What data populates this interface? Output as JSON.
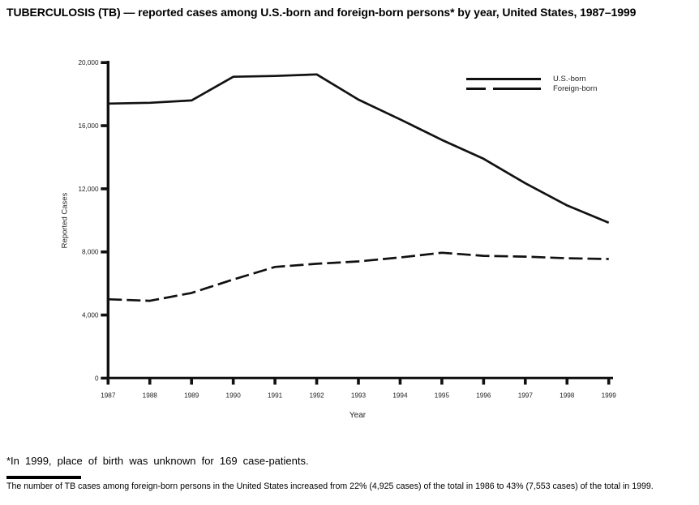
{
  "page": {
    "title": "TUBERCULOSIS (TB) — reported cases among U.S.-born and foreign-born persons* by year, United States, 1987–1999",
    "footnote": "*In 1999, place of birth was unknown for 169 case-patients.",
    "caption": "The number of TB cases among foreign-born persons in the United States increased from 22% (4,925 cases) of the total in 1986 to 43% (7,553 cases) of the total in 1999."
  },
  "chart_data": {
    "type": "line",
    "title": "",
    "xlabel": "Year",
    "ylabel": "Reported Cases",
    "x": [
      1987,
      1988,
      1989,
      1990,
      1991,
      1992,
      1993,
      1994,
      1995,
      1996,
      1997,
      1998,
      1999
    ],
    "xtick_labels": [
      "1987",
      "1988",
      "1989",
      "1990",
      "1991",
      "1992",
      "1993",
      "1994",
      "1995",
      "1996",
      "1997",
      "1998",
      "1999"
    ],
    "series": [
      {
        "name": "U.S.-born",
        "line_style": "solid",
        "color": "#111111",
        "values": [
          17400,
          17450,
          17600,
          19100,
          19150,
          19250,
          17650,
          16400,
          15100,
          13900,
          12350,
          10950,
          9850
        ]
      },
      {
        "name": "Foreign-born",
        "line_style": "dashed",
        "color": "#111111",
        "values": [
          5000,
          4900,
          5400,
          6250,
          7050,
          7250,
          7400,
          7650,
          7950,
          7750,
          7700,
          7600,
          7550
        ]
      }
    ],
    "ylim": [
      0,
      20000
    ],
    "yticks": [
      0,
      4000,
      8000,
      12000,
      16000,
      20000
    ],
    "ytick_labels": [
      "0",
      "4,000",
      "8,000",
      "12,000",
      "16,000",
      "20,000"
    ],
    "legend": {
      "position": "top-right",
      "entries": [
        "U.S.-born",
        "Foreign-born"
      ]
    },
    "grid": false
  },
  "colors": {
    "ink": "#111111",
    "background": "#ffffff",
    "tick_label": "#1f1f1f"
  }
}
